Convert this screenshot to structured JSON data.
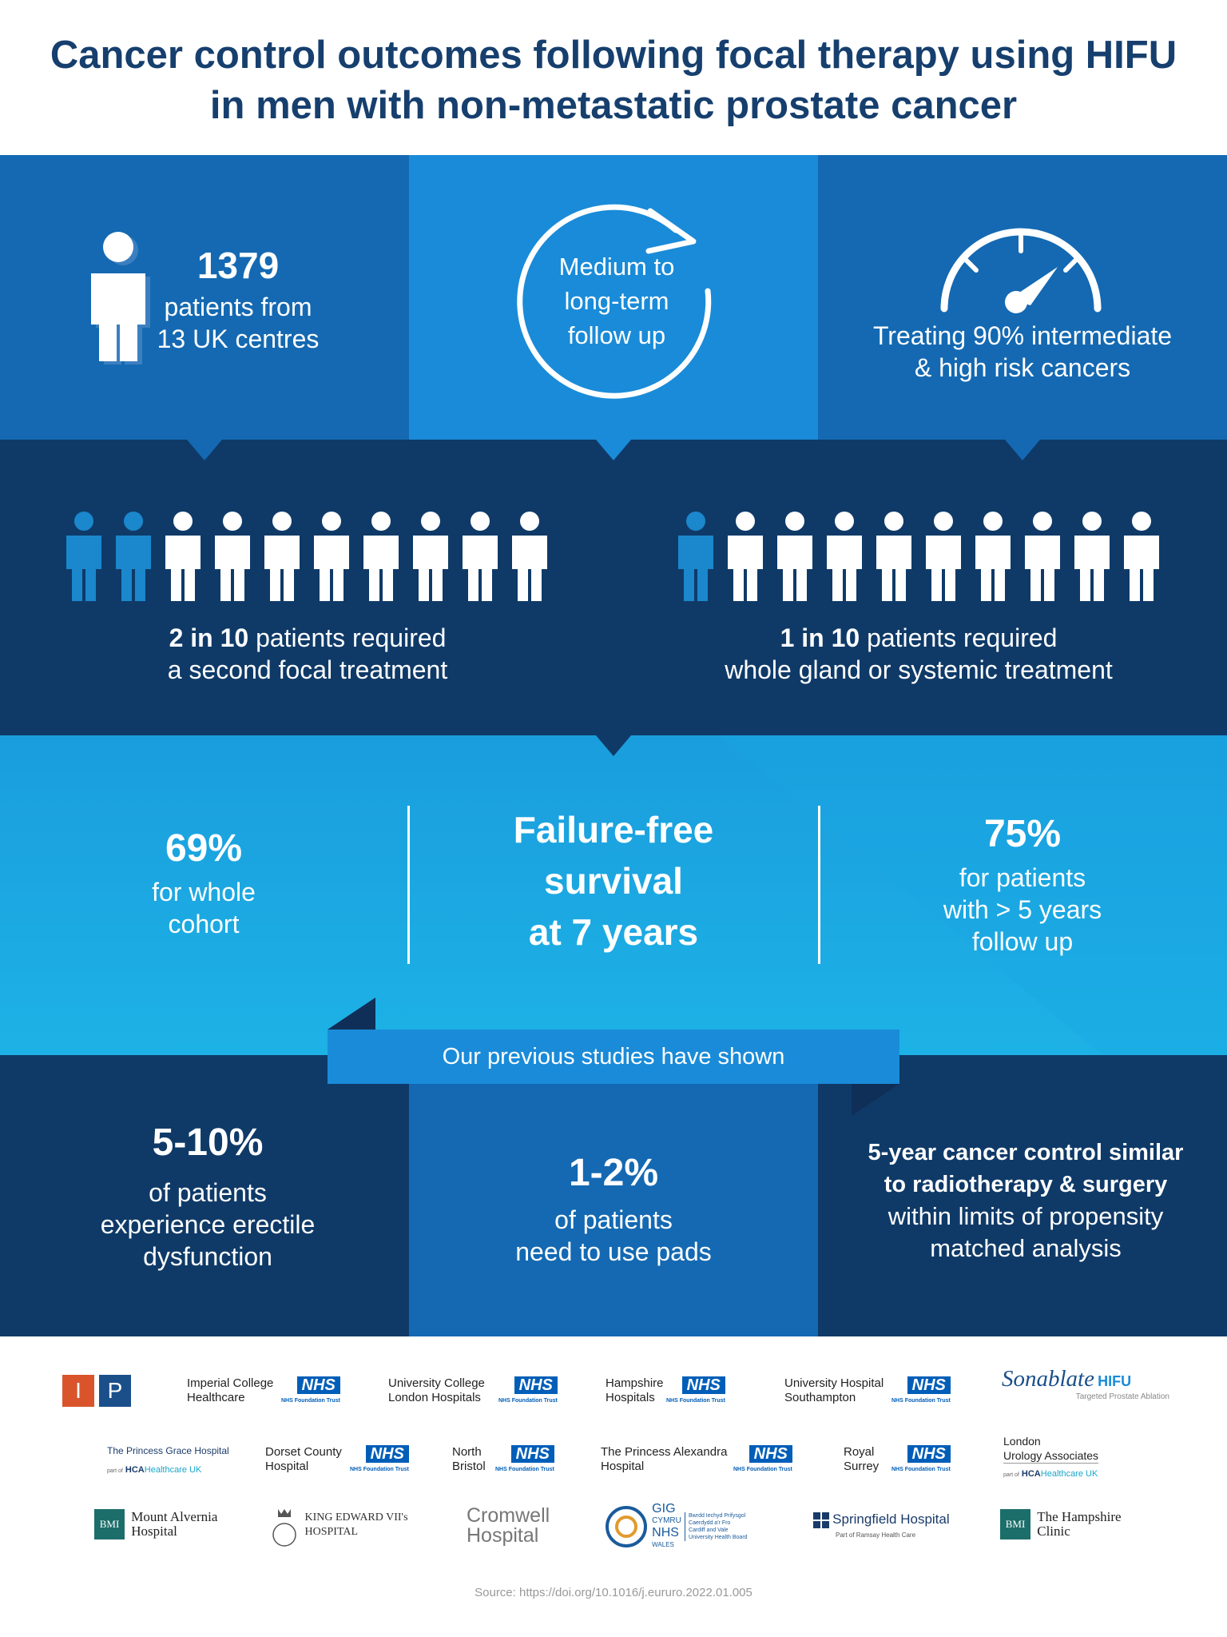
{
  "title": {
    "line1": "Cancer control outcomes following focal therapy using HIFU",
    "line2": "in men with non-metastatic prostate cancer"
  },
  "top": {
    "patients_count": "1379",
    "patients_line1": "patients from",
    "patients_line2": "13 UK centres",
    "follow_line1": "Medium to",
    "follow_line2": "long-term",
    "follow_line3": "follow up",
    "risk_line1": "Treating 90% intermediate",
    "risk_line2": "& high risk cancers"
  },
  "middle": {
    "left_bold": "2 in 10",
    "left_rest": " patients required",
    "left_line2": "a second focal treatment",
    "left_highlight_count": 2,
    "right_bold": "1 in 10",
    "right_rest": " patients required",
    "right_line2": "whole gland or systemic treatment",
    "right_highlight_count": 1
  },
  "survival": {
    "left_value": "69%",
    "left_line1": "for whole",
    "left_line2": "cohort",
    "center_line1": "Failure-free",
    "center_line2": "survival",
    "center_line3": "at 7 years",
    "right_value": "75%",
    "right_line1": "for patients",
    "right_line2": "with > 5 years",
    "right_line3": "follow up"
  },
  "banner": "Our previous studies have shown",
  "previous": {
    "a_value": "5-10%",
    "a_line1": "of patients",
    "a_line2": "experience erectile",
    "a_line3": "dysfunction",
    "b_value": "1-2%",
    "b_line1": "of patients",
    "b_line2": "need to use pads",
    "c_bold1": "5-year cancer control similar",
    "c_bold2": "to radiotherapy & surgery",
    "c_line1": "within limits of propensity",
    "c_line2": "matched analysis"
  },
  "logos": {
    "ip_i": "I",
    "ip_p": "P",
    "nhs": "NHS",
    "nhs_sub": "NHS Foundation Trust",
    "imperial_1": "Imperial College",
    "imperial_2": "Healthcare",
    "ucl_1": "University College",
    "ucl_2": "London Hospitals",
    "hampshire_1": "Hampshire",
    "hampshire_2": "Hospitals",
    "soton_1": "University Hospital",
    "soton_2": "Southampton",
    "sonablate": "Sonablate",
    "sonablate_hifu": "HIFU",
    "sonablate_sub": "Targeted Prostate Ablation",
    "princess_grace": "The Princess Grace Hospital",
    "hca_part": "part of",
    "hca": "HCA",
    "hca_uk": "Healthcare UK",
    "dorset_1": "Dorset County",
    "dorset_2": "Hospital",
    "north_1": "North",
    "north_2": "Bristol",
    "alexandra_1": "The Princess Alexandra",
    "alexandra_2": "Hospital",
    "surrey_1": "Royal",
    "surrey_2": "Surrey",
    "london_uro_1": "London",
    "london_uro_2": "Urology Associates",
    "bmi": "BMI",
    "mount_1": "Mount Alvernia",
    "mount_2": "Hospital",
    "kev_1": "KING EDWARD VII's",
    "kev_2": "HOSPITAL",
    "cromwell_1": "Cromwell",
    "cromwell_2": "Hospital",
    "gig_1": "GIG",
    "gig_2": "CYMRU",
    "gig_3": "NHS",
    "gig_4": "WALES",
    "cardiff_1": "Bwrdd Iechyd Prifysgol",
    "cardiff_2": "Caerdydd a'r Fro",
    "cardiff_3": "Cardiff and Vale",
    "cardiff_4": "University Health Board",
    "springfield": "Springfield Hospital",
    "springfield_sub": "Part of Ramsay Health Care",
    "hampshire_clinic_1": "The Hampshire",
    "hampshire_clinic_2": "Clinic"
  },
  "source": "Source: https://doi.org/10.1016/j.eururo.2022.01.005",
  "colors": {
    "navy": "#163f6e",
    "dark": "#0f3a68",
    "mid": "#1268b3",
    "bright": "#1a8ad6",
    "cyan": "#1da4e0",
    "highlight_figure": "#1b87cc"
  }
}
